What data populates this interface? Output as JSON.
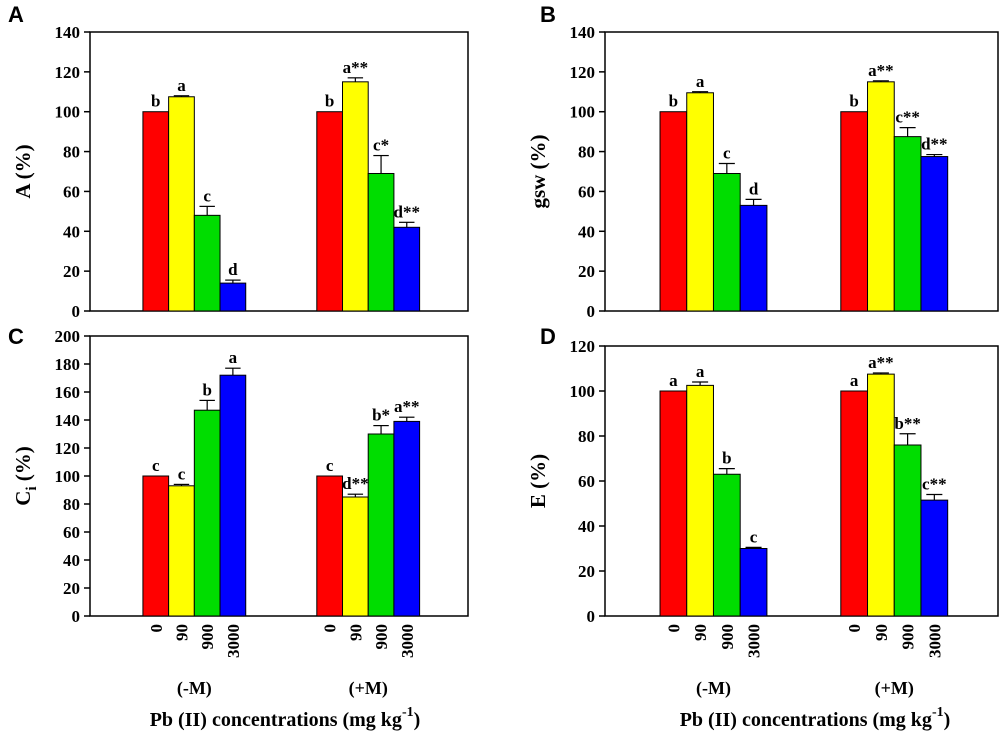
{
  "chart_data": [
    {
      "panel": "A",
      "type": "bar",
      "ylabel": "A (%)",
      "ylim": [
        0,
        140
      ],
      "yticks": [
        0,
        20,
        40,
        60,
        80,
        100,
        120,
        140
      ],
      "groups": [
        "(-M)",
        "(+M)"
      ],
      "categories": [
        "0",
        "90",
        "900",
        "3000"
      ],
      "colors": [
        "#ff0000",
        "#ffff00",
        "#00dd00",
        "#0000ff"
      ],
      "values": [
        [
          100,
          107.5,
          48,
          14
        ],
        [
          100,
          115,
          69,
          42
        ]
      ],
      "errors": [
        [
          0,
          0.5,
          4.5,
          1.5
        ],
        [
          0,
          2,
          9,
          2.5
        ]
      ],
      "labels": [
        [
          "b",
          "a",
          "c",
          "d"
        ],
        [
          "b",
          "a**",
          "c*",
          "d**"
        ]
      ]
    },
    {
      "panel": "B",
      "type": "bar",
      "ylabel": "gsw (%)",
      "ylim": [
        0,
        140
      ],
      "yticks": [
        0,
        20,
        40,
        60,
        80,
        100,
        120,
        140
      ],
      "groups": [
        "(-M)",
        "(+M)"
      ],
      "categories": [
        "0",
        "90",
        "900",
        "3000"
      ],
      "colors": [
        "#ff0000",
        "#ffff00",
        "#00dd00",
        "#0000ff"
      ],
      "values": [
        [
          100,
          109.5,
          69,
          53
        ],
        [
          100,
          115,
          87.5,
          77.5
        ]
      ],
      "errors": [
        [
          0,
          0.5,
          5,
          3
        ],
        [
          0,
          0.5,
          4.5,
          1
        ]
      ],
      "labels": [
        [
          "b",
          "a",
          "c",
          "d"
        ],
        [
          "b",
          "a**",
          "c**",
          "d**"
        ]
      ]
    },
    {
      "panel": "C",
      "type": "bar",
      "ylabel": "Ci (%)",
      "ylabel_main": "C",
      "ylabel_sub": "i",
      "ylabel_rest": " (%)",
      "ylim": [
        0,
        200
      ],
      "yticks": [
        0,
        20,
        40,
        60,
        80,
        100,
        120,
        140,
        160,
        180,
        200
      ],
      "groups": [
        "(-M)",
        "(+M)"
      ],
      "categories": [
        "0",
        "90",
        "900",
        "3000"
      ],
      "colors": [
        "#ff0000",
        "#ffff00",
        "#00dd00",
        "#0000ff"
      ],
      "values": [
        [
          100,
          93,
          147,
          172
        ],
        [
          100,
          85,
          130,
          139
        ]
      ],
      "errors": [
        [
          0,
          1,
          7,
          5
        ],
        [
          0,
          2,
          6,
          3
        ]
      ],
      "labels": [
        [
          "c",
          "c",
          "b",
          "a"
        ],
        [
          "c",
          "d**",
          "b*",
          "a**"
        ]
      ]
    },
    {
      "panel": "D",
      "type": "bar",
      "ylabel": "E (%)",
      "ylim": [
        0,
        120
      ],
      "yticks": [
        0,
        20,
        40,
        60,
        80,
        100,
        120
      ],
      "groups": [
        "(-M)",
        "(+M)"
      ],
      "categories": [
        "0",
        "90",
        "900",
        "3000"
      ],
      "colors": [
        "#ff0000",
        "#ffff00",
        "#00dd00",
        "#0000ff"
      ],
      "values": [
        [
          100,
          102.5,
          63,
          30
        ],
        [
          100,
          107.5,
          76,
          51.5
        ]
      ],
      "errors": [
        [
          0,
          1.5,
          2.5,
          0.5
        ],
        [
          0,
          0.5,
          5,
          2.5
        ]
      ],
      "labels": [
        [
          "a",
          "a",
          "b",
          "c"
        ],
        [
          "a",
          "a**",
          "b**",
          "c**"
        ]
      ]
    }
  ],
  "xlabel_main": "Pb (II) concentrations (mg kg",
  "xlabel_sup": "-1",
  "xlabel_close": ")"
}
